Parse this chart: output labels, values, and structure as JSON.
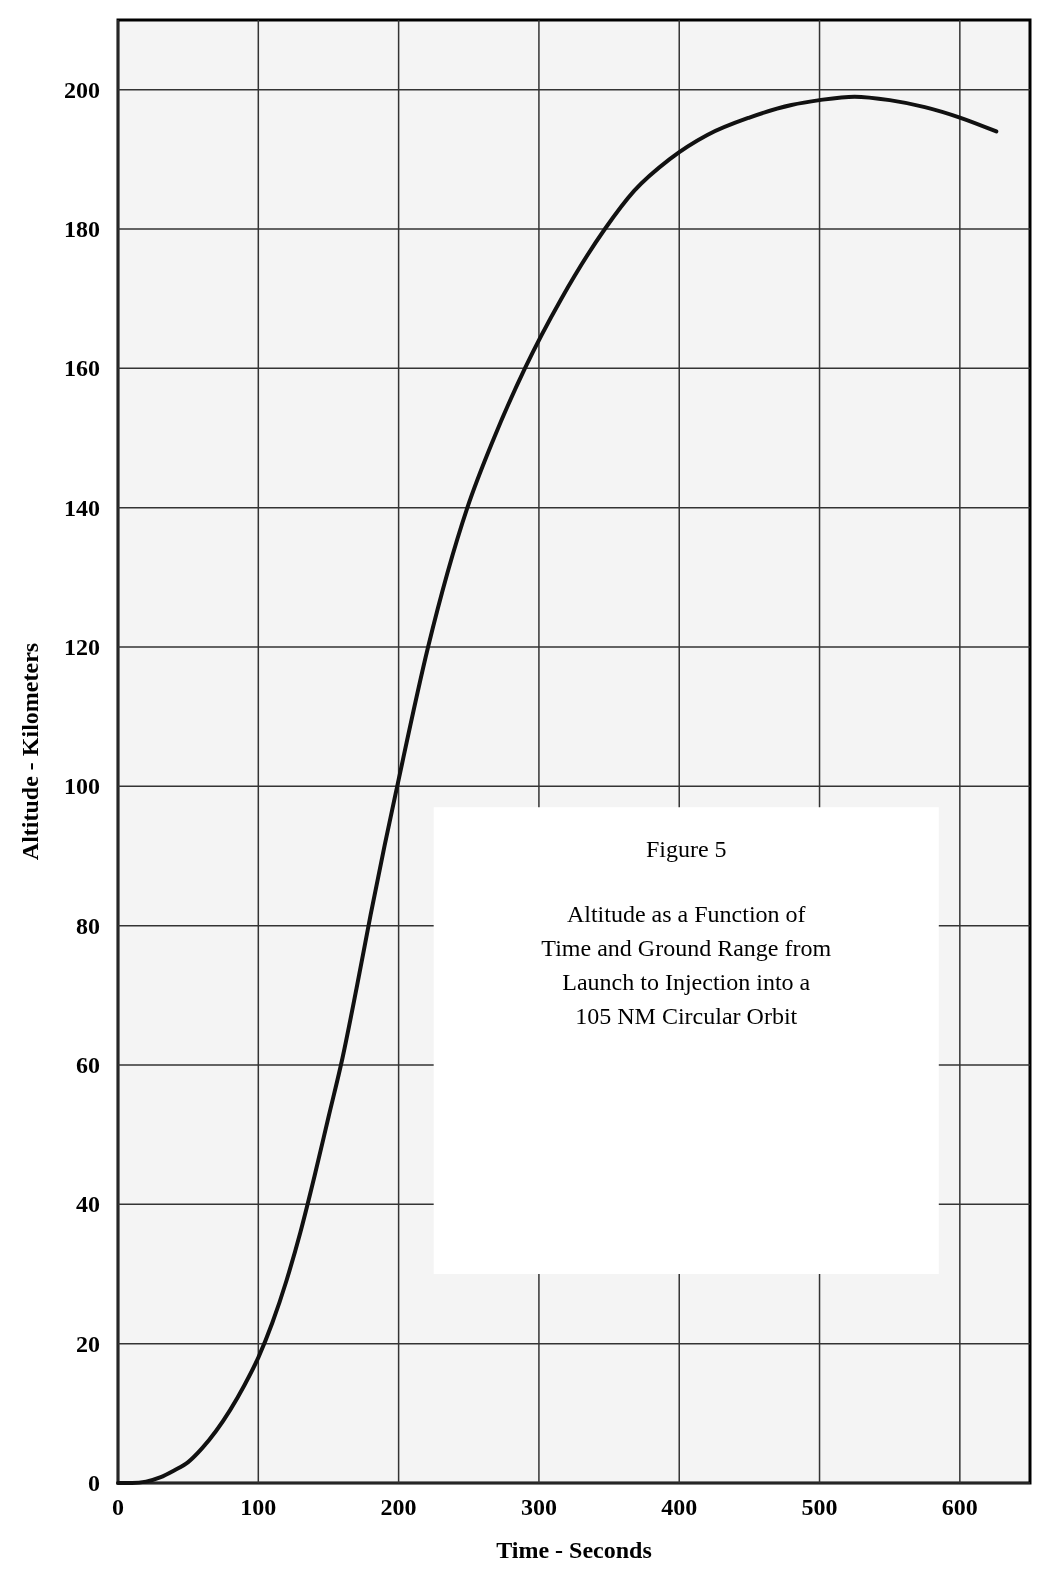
{
  "chart_data": {
    "type": "line",
    "title": "Figure 5",
    "subtitle": "Altitude as a Function of Time and Ground Range from Launch to Injection into a 105 NM Circular Orbit",
    "xlabel": "Time - Seconds",
    "ylabel": "Altitude - Kilometers",
    "x": [
      0,
      10,
      20,
      30,
      40,
      50,
      60,
      70,
      80,
      90,
      100,
      110,
      120,
      130,
      140,
      150,
      160,
      170,
      180,
      190,
      199,
      221,
      249,
      268,
      290,
      316,
      347,
      368,
      393,
      420,
      450,
      480,
      500,
      525,
      550,
      575,
      600,
      626
    ],
    "series": [
      {
        "color": "#111111",
        "values": [
          0,
          0,
          0.2,
          0.8,
          1.8,
          3,
          5,
          7.5,
          10.5,
          14,
          18,
          23,
          29,
          36,
          44,
          52.5,
          61,
          71,
          81.5,
          91.5,
          100,
          120,
          140,
          150,
          160,
          170,
          180,
          185.5,
          190,
          193.5,
          196,
          197.8,
          198.5,
          199,
          198.5,
          197.5,
          196,
          194
        ]
      }
    ],
    "xlim": [
      0,
      650
    ],
    "ylim": [
      0,
      210
    ],
    "xticks": [
      0,
      100,
      200,
      300,
      400,
      500,
      600
    ],
    "yticks": [
      0,
      20,
      40,
      60,
      80,
      100,
      120,
      140,
      160,
      180,
      200
    ],
    "grid": true,
    "marker": "none",
    "line_style": "solid"
  }
}
